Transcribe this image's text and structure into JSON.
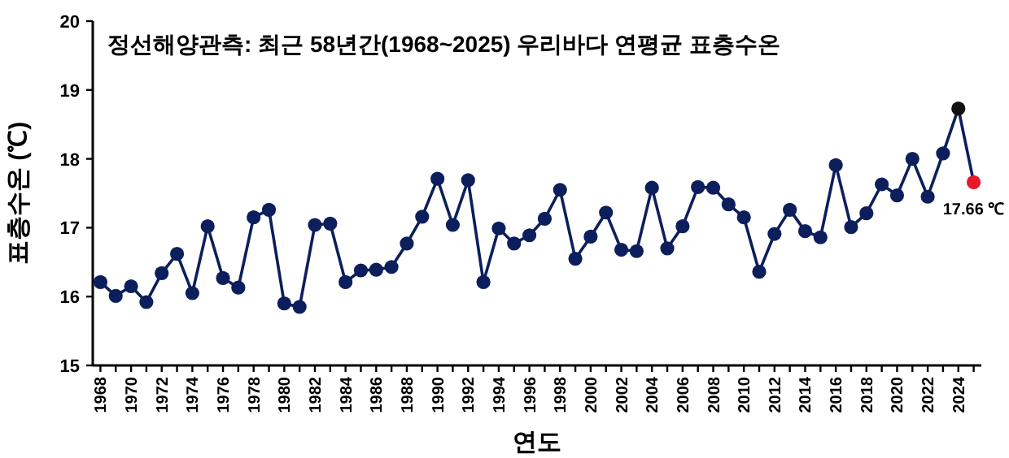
{
  "chart_data": {
    "type": "line",
    "title": "정선해양관측: 최근 58년간(1968~2025) 우리바다 연평균 표층수온",
    "xlabel": "연도",
    "ylabel": "표층수온 (℃)",
    "marker": "circle",
    "x": [
      1968,
      1969,
      1970,
      1971,
      1972,
      1973,
      1974,
      1975,
      1976,
      1977,
      1978,
      1979,
      1980,
      1981,
      1982,
      1983,
      1984,
      1985,
      1986,
      1987,
      1988,
      1989,
      1990,
      1991,
      1992,
      1993,
      1994,
      1995,
      1996,
      1997,
      1998,
      1999,
      2000,
      2001,
      2002,
      2003,
      2004,
      2005,
      2006,
      2007,
      2008,
      2009,
      2010,
      2011,
      2012,
      2013,
      2014,
      2015,
      2016,
      2017,
      2018,
      2019,
      2020,
      2021,
      2022,
      2023,
      2024,
      2025
    ],
    "series": [
      {
        "color": "#0c1f5c",
        "colors": [
          "#0c1f5c",
          "#0c1f5c",
          "#0c1f5c",
          "#0c1f5c",
          "#0c1f5c",
          "#0c1f5c",
          "#0c1f5c",
          "#0c1f5c",
          "#0c1f5c",
          "#0c1f5c",
          "#0c1f5c",
          "#0c1f5c",
          "#0c1f5c",
          "#0c1f5c",
          "#0c1f5c",
          "#0c1f5c",
          "#0c1f5c",
          "#0c1f5c",
          "#0c1f5c",
          "#0c1f5c",
          "#0c1f5c",
          "#0c1f5c",
          "#0c1f5c",
          "#0c1f5c",
          "#0c1f5c",
          "#0c1f5c",
          "#0c1f5c",
          "#0c1f5c",
          "#0c1f5c",
          "#0c1f5c",
          "#0c1f5c",
          "#0c1f5c",
          "#0c1f5c",
          "#0c1f5c",
          "#0c1f5c",
          "#0c1f5c",
          "#0c1f5c",
          "#0c1f5c",
          "#0c1f5c",
          "#0c1f5c",
          "#0c1f5c",
          "#0c1f5c",
          "#0c1f5c",
          "#0c1f5c",
          "#0c1f5c",
          "#0c1f5c",
          "#0c1f5c",
          "#0c1f5c",
          "#0c1f5c",
          "#0c1f5c",
          "#0c1f5c",
          "#0c1f5c",
          "#0c1f5c",
          "#0c1f5c",
          "#0c1f5c",
          "#0c1f5c",
          "#111111",
          "#e8192c"
        ],
        "values": [
          16.21,
          16.01,
          16.15,
          15.92,
          16.34,
          16.62,
          16.05,
          17.02,
          16.27,
          16.13,
          17.15,
          17.26,
          15.9,
          15.85,
          17.04,
          17.06,
          16.21,
          16.38,
          16.39,
          16.43,
          16.77,
          17.16,
          17.71,
          17.04,
          17.69,
          16.21,
          16.99,
          16.77,
          16.89,
          17.13,
          17.55,
          16.55,
          16.87,
          17.22,
          16.68,
          16.66,
          17.58,
          16.7,
          17.02,
          17.59,
          17.58,
          17.34,
          17.15,
          16.36,
          16.91,
          17.26,
          16.95,
          16.86,
          17.91,
          17.01,
          17.21,
          17.63,
          17.47,
          18.0,
          17.45,
          18.08,
          18.73,
          17.66
        ]
      }
    ],
    "annotations": [
      {
        "text": "17.66 ℃",
        "x": 2025,
        "y": 17.66
      }
    ],
    "xlim": [
      1967.5,
      2025.5
    ],
    "ylim": [
      15,
      20
    ],
    "yticks": [
      15,
      16,
      17,
      18,
      19,
      20
    ],
    "xticks": [
      1968,
      {
        "value": 1969,
        "label": null
      },
      1970,
      {
        "value": 1971,
        "label": null
      },
      1972,
      {
        "value": 1973,
        "label": null
      },
      1974,
      {
        "value": 1975,
        "label": null
      },
      1976,
      {
        "value": 1977,
        "label": null
      },
      1978,
      {
        "value": 1979,
        "label": null
      },
      1980,
      {
        "value": 1981,
        "label": null
      },
      1982,
      {
        "value": 1983,
        "label": null
      },
      1984,
      {
        "value": 1985,
        "label": null
      },
      1986,
      {
        "value": 1987,
        "label": null
      },
      1988,
      {
        "value": 1989,
        "label": null
      },
      1990,
      {
        "value": 1991,
        "label": null
      },
      1992,
      {
        "value": 1993,
        "label": null
      },
      1994,
      {
        "value": 1995,
        "label": null
      },
      1996,
      {
        "value": 1997,
        "label": null
      },
      1998,
      {
        "value": 1999,
        "label": null
      },
      2000,
      {
        "value": 2001,
        "label": null
      },
      2002,
      {
        "value": 2003,
        "label": null
      },
      2004,
      {
        "value": 2005,
        "label": null
      },
      2006,
      {
        "value": 2007,
        "label": null
      },
      2008,
      {
        "value": 2009,
        "label": null
      },
      2010,
      {
        "value": 2011,
        "label": null
      },
      2012,
      {
        "value": 2013,
        "label": null
      },
      2014,
      {
        "value": 2015,
        "label": null
      },
      2016,
      {
        "value": 2017,
        "label": null
      },
      2018,
      {
        "value": 2019,
        "label": null
      },
      2020,
      {
        "value": 2021,
        "label": null
      },
      2022,
      {
        "value": 2023,
        "label": null
      },
      2024,
      {
        "value": 2025,
        "label": null
      }
    ]
  }
}
